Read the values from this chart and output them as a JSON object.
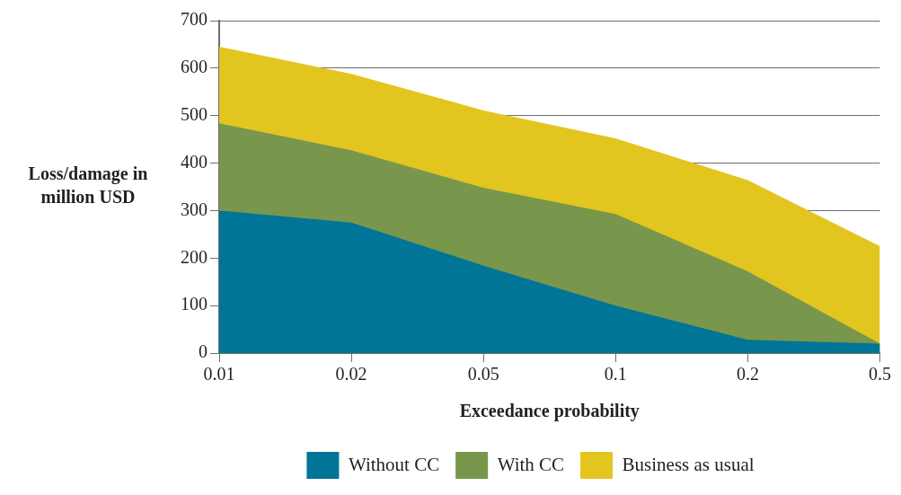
{
  "chart_data": {
    "type": "area",
    "xlabel": "Exceedance probability",
    "ylabel": "Loss/damage in million USD",
    "categories": [
      "0.01",
      "0.02",
      "0.05",
      "0.1",
      "0.2",
      "0.5"
    ],
    "series": [
      {
        "name": "Business as usual",
        "color": "#e3c51f",
        "values": [
          645,
          588,
          511,
          452,
          364,
          225
        ]
      },
      {
        "name": "With CC",
        "color": "#78974c",
        "values": [
          484,
          427,
          348,
          293,
          172,
          20
        ]
      },
      {
        "name": "Without CC",
        "color": "#007597",
        "values": [
          300,
          275,
          184,
          100,
          28,
          20
        ]
      }
    ],
    "ylim": [
      0,
      700
    ],
    "yticks": [
      0,
      100,
      200,
      300,
      400,
      500,
      600,
      700
    ],
    "grid": "y",
    "legend": "bottom"
  }
}
